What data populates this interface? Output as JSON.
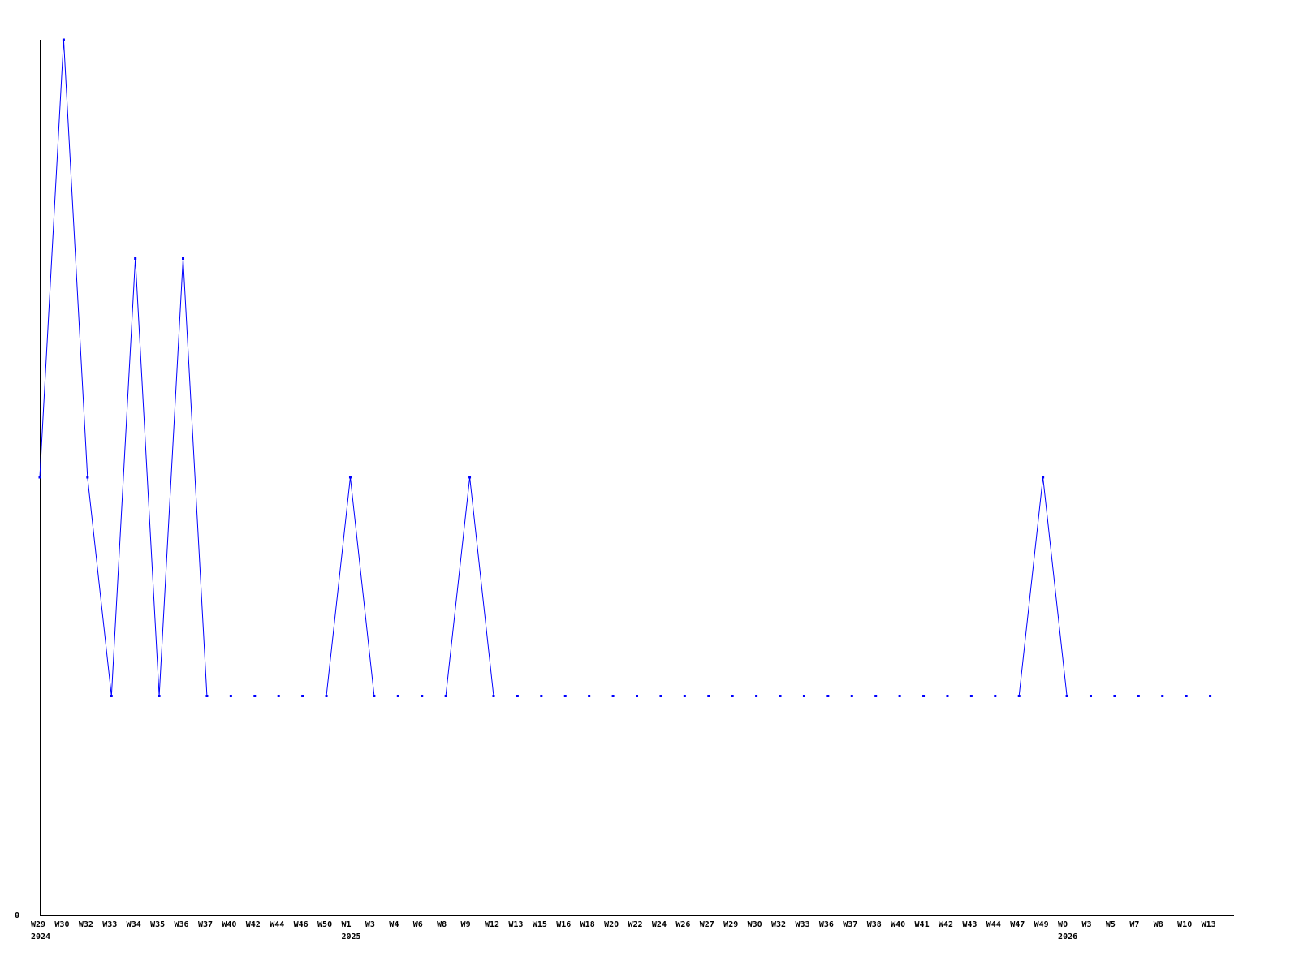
{
  "chart_data": {
    "type": "line",
    "title": "",
    "xlabel": "",
    "ylabel": "",
    "y_tick_labels": [
      "0"
    ],
    "ylim": [
      0,
      4
    ],
    "grid": false,
    "line_color": "#0000ff",
    "axis_color": "#000000",
    "categories": [
      "W29",
      "W30",
      "W32",
      "W33",
      "W34",
      "W35",
      "W36",
      "W37",
      "W40",
      "W42",
      "W44",
      "W46",
      "W50",
      "W1",
      "W3",
      "W4",
      "W6",
      "W8",
      "W9",
      "W12",
      "W13",
      "W15",
      "W16",
      "W18",
      "W20",
      "W22",
      "W24",
      "W26",
      "W27",
      "W29",
      "W30",
      "W32",
      "W33",
      "W36",
      "W37",
      "W38",
      "W40",
      "W41",
      "W42",
      "W43",
      "W44",
      "W47",
      "W49",
      "W0",
      "W3",
      "W5",
      "W7",
      "W8",
      "W10",
      "W13"
    ],
    "year_labels": [
      {
        "index": 0,
        "label": "2024"
      },
      {
        "index": 13,
        "label": "2025"
      },
      {
        "index": 43,
        "label": "2026"
      }
    ],
    "series": [
      {
        "values": [
          2,
          4,
          2,
          1,
          3,
          1,
          3,
          1,
          1,
          1,
          1,
          1,
          1,
          2,
          1,
          1,
          1,
          1,
          2,
          1,
          1,
          1,
          1,
          1,
          1,
          1,
          1,
          1,
          1,
          1,
          1,
          1,
          1,
          1,
          1,
          1,
          1,
          1,
          1,
          1,
          1,
          1,
          2,
          1,
          1,
          1,
          1,
          1,
          1,
          1
        ]
      }
    ]
  }
}
